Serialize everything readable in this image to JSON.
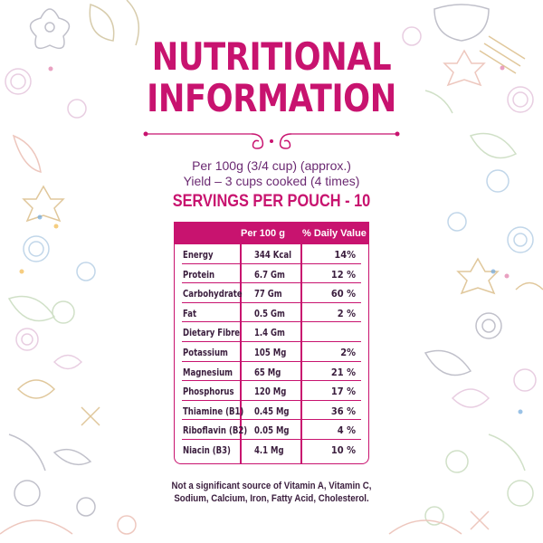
{
  "title": {
    "line1": "NUTRITIONAL",
    "line2": "INFORMATION"
  },
  "serving_info": {
    "per": "Per 100g (3/4 cup) (approx.)",
    "yield": "Yield – 3 cups cooked (4 times)",
    "servings": "SERVINGS PER POUCH - 10"
  },
  "table": {
    "headers": {
      "per_100g": "Per 100 g",
      "daily_value": "% Daily Value"
    },
    "rows": [
      {
        "name": "Energy",
        "per": "344 Kcal",
        "dv": "14%"
      },
      {
        "name": "Protein",
        "per": "6.7 Gm",
        "dv": "12 %"
      },
      {
        "name": "Carbohydrate",
        "per": "77 Gm",
        "dv": "60 %"
      },
      {
        "name": "Fat",
        "per": "0.5 Gm",
        "dv": "2 %"
      },
      {
        "name": "Dietary Fibre",
        "per": "1.4 Gm",
        "dv": ""
      },
      {
        "name": "Potassium",
        "per": "105 Mg",
        "dv": "2%"
      },
      {
        "name": "Magnesium",
        "per": "65 Mg",
        "dv": "21 %"
      },
      {
        "name": "Phosphorus",
        "per": "120 Mg",
        "dv": "17 %"
      },
      {
        "name": "Thiamine (B1)",
        "per": "0.45 Mg",
        "dv": "36 %"
      },
      {
        "name": "Riboflavin (B2)",
        "per": "0.05 Mg",
        "dv": "4 %"
      },
      {
        "name": "Niacin (B3)",
        "per": "4.1 Mg",
        "dv": "10 %"
      }
    ]
  },
  "footer": {
    "line1": "Not a significant source of Vitamin A, Vitamin C,",
    "line2": "Sodium, Calcium, Iron, Fatty Acid, Cholesterol."
  },
  "colors": {
    "accent": "#c8136f",
    "text": "#3a1d3d",
    "subtitle": "#6b2a72"
  }
}
